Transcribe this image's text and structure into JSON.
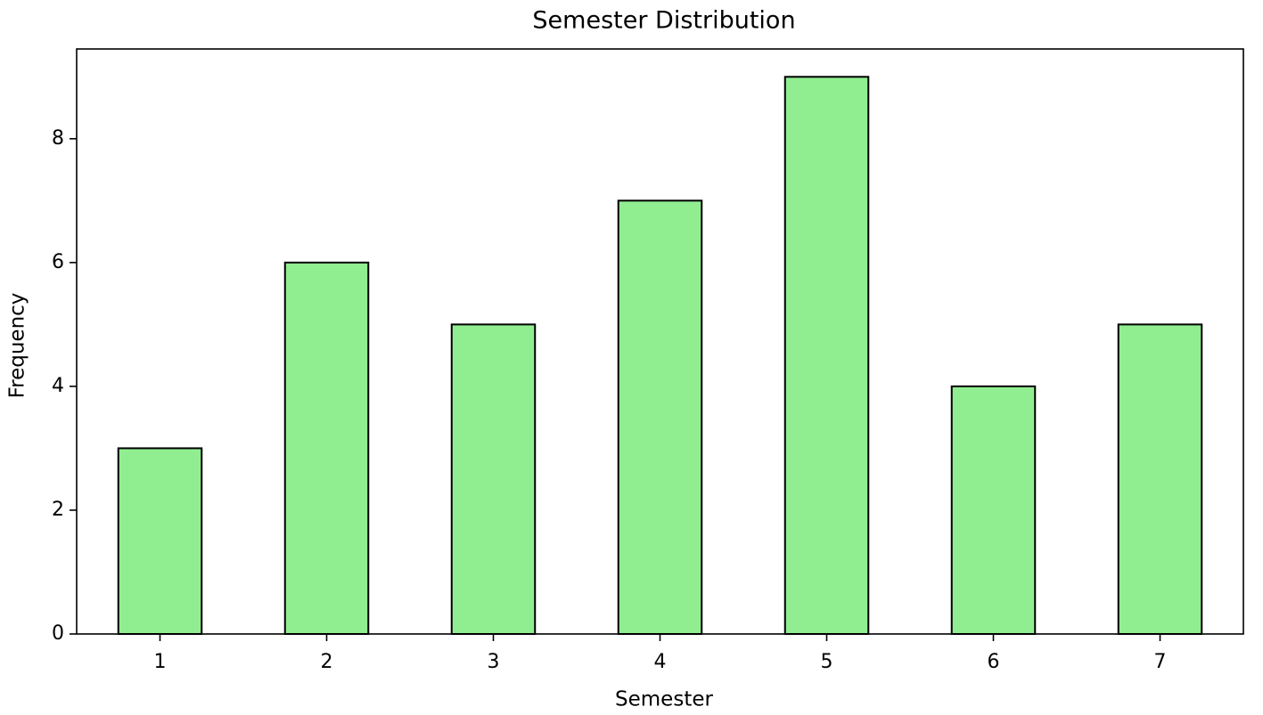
{
  "chart_data": {
    "type": "bar",
    "title": "Semester Distribution",
    "x_label": "Semester",
    "y_label": "Frequency",
    "categories": [
      "1",
      "2",
      "3",
      "4",
      "5",
      "6",
      "7"
    ],
    "values": [
      3,
      6,
      5,
      7,
      9,
      4,
      5
    ],
    "color": "#90ee90",
    "edge_color": "#000000",
    "ylim": [
      0,
      9.45
    ],
    "yticks": [
      0,
      2,
      4,
      6,
      8
    ],
    "grid": false
  }
}
